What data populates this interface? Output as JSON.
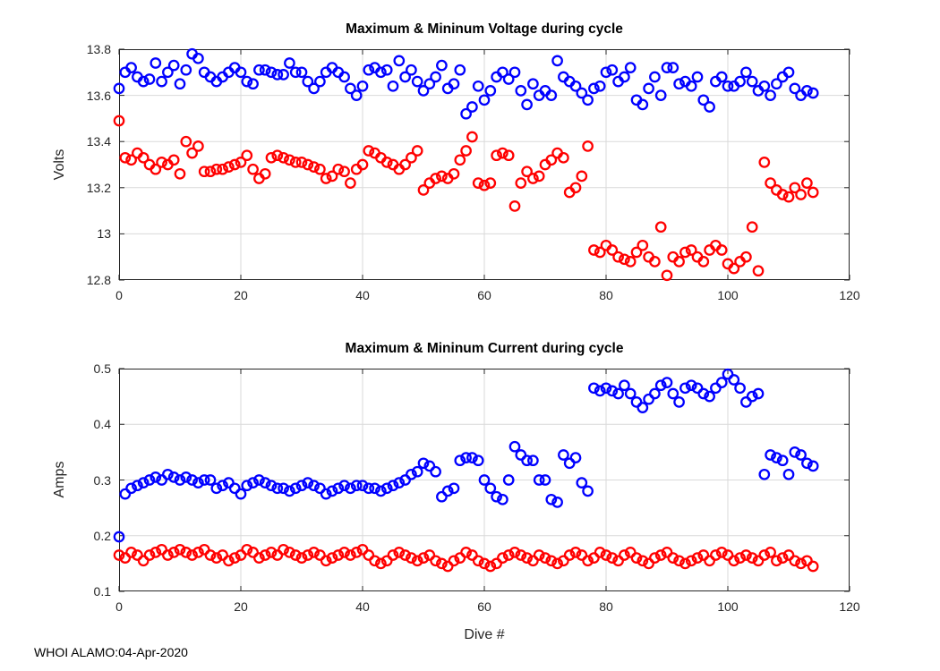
{
  "figure": {
    "footer": "WHOI ALAMO:04-Apr-2020",
    "background": "#ffffff"
  },
  "colors": {
    "max_series": "#0000ff",
    "min_series": "#ff0000",
    "grid": "#d9d9d9",
    "axis": "#262626",
    "text": "#262626"
  },
  "chart_data": [
    {
      "type": "scatter",
      "title": "Maximum & Mininum Voltage during cycle",
      "xlabel": "",
      "ylabel": "Volts",
      "xlim": [
        0,
        120
      ],
      "ylim": [
        12.8,
        13.8
      ],
      "xticks": [
        "0",
        "20",
        "40",
        "60",
        "80",
        "100",
        "120"
      ],
      "yticks": [
        "12.8",
        "13",
        "13.2",
        "13.4",
        "13.6",
        "13.8"
      ],
      "grid": true,
      "marker": "open-circle",
      "x": {
        "start": 0,
        "step": 1,
        "n": 115,
        "label": "Dive #"
      },
      "series": [
        {
          "name": "maximum-voltage",
          "color": "#0000ff",
          "y": [
            13.63,
            13.7,
            13.72,
            13.68,
            13.66,
            13.67,
            13.74,
            13.66,
            13.7,
            13.73,
            13.65,
            13.71,
            13.78,
            13.76,
            13.7,
            13.68,
            13.66,
            13.68,
            13.7,
            13.72,
            13.7,
            13.66,
            13.65,
            13.71,
            13.71,
            13.7,
            13.69,
            13.69,
            13.74,
            13.7,
            13.7,
            13.66,
            13.63,
            13.66,
            13.7,
            13.72,
            13.7,
            13.68,
            13.63,
            13.6,
            13.64,
            13.71,
            13.72,
            13.7,
            13.71,
            13.64,
            13.75,
            13.68,
            13.71,
            13.66,
            13.62,
            13.65,
            13.68,
            13.73,
            13.63,
            13.65,
            13.71,
            13.52,
            13.55,
            13.64,
            13.58,
            13.62,
            13.68,
            13.7,
            13.67,
            13.7,
            13.62,
            13.56,
            13.65,
            13.6,
            13.62,
            13.6,
            13.75,
            13.68,
            13.66,
            13.64,
            13.61,
            13.58,
            13.63,
            13.64,
            13.7,
            13.71,
            13.66,
            13.68,
            13.72,
            13.58,
            13.56,
            13.63,
            13.68,
            13.6,
            13.72,
            13.72,
            13.65,
            13.66,
            13.64,
            13.68,
            13.58,
            13.55,
            13.66,
            13.68,
            13.64,
            13.64,
            13.66,
            13.7,
            13.66,
            13.62,
            13.64,
            13.6,
            13.65,
            13.68,
            13.7,
            13.63,
            13.6,
            13.62,
            13.61
          ]
        },
        {
          "name": "minimum-voltage",
          "color": "#ff0000",
          "y": [
            13.49,
            13.33,
            13.32,
            13.35,
            13.33,
            13.3,
            13.28,
            13.31,
            13.3,
            13.32,
            13.26,
            13.4,
            13.35,
            13.38,
            13.27,
            13.27,
            13.28,
            13.28,
            13.29,
            13.3,
            13.31,
            13.34,
            13.28,
            13.24,
            13.26,
            13.33,
            13.34,
            13.33,
            13.32,
            13.31,
            13.31,
            13.3,
            13.29,
            13.28,
            13.24,
            13.25,
            13.28,
            13.27,
            13.22,
            13.28,
            13.3,
            13.36,
            13.35,
            13.33,
            13.31,
            13.3,
            13.28,
            13.3,
            13.33,
            13.36,
            13.19,
            13.22,
            13.24,
            13.25,
            13.24,
            13.26,
            13.32,
            13.36,
            13.42,
            13.22,
            13.21,
            13.22,
            13.34,
            13.35,
            13.34,
            13.12,
            13.22,
            13.27,
            13.24,
            13.25,
            13.3,
            13.32,
            13.35,
            13.33,
            13.18,
            13.2,
            13.25,
            13.38,
            12.93,
            12.92,
            12.95,
            12.93,
            12.9,
            12.89,
            12.88,
            12.92,
            12.95,
            12.9,
            12.88,
            13.03,
            12.82,
            12.9,
            12.88,
            12.92,
            12.93,
            12.9,
            12.88,
            12.93,
            12.95,
            12.93,
            12.87,
            12.85,
            12.88,
            12.9,
            13.03,
            12.84,
            13.31,
            13.22,
            13.19,
            13.17,
            13.16,
            13.2,
            13.17,
            13.22,
            13.18
          ]
        }
      ]
    },
    {
      "type": "scatter",
      "title": "Maximum & Mininum Current during cycle",
      "xlabel": "Dive #",
      "ylabel": "Amps",
      "xlim": [
        0,
        120
      ],
      "ylim": [
        0.1,
        0.5
      ],
      "xticks": [
        "0",
        "20",
        "40",
        "60",
        "80",
        "100",
        "120"
      ],
      "yticks": [
        "0.1",
        "0.2",
        "0.3",
        "0.4",
        "0.5"
      ],
      "grid": true,
      "marker": "open-circle",
      "x": {
        "start": 0,
        "step": 1,
        "n": 115,
        "label": "Dive #"
      },
      "series": [
        {
          "name": "maximum-current",
          "color": "#0000ff",
          "y": [
            0.198,
            0.275,
            0.285,
            0.29,
            0.295,
            0.3,
            0.305,
            0.3,
            0.31,
            0.305,
            0.3,
            0.305,
            0.3,
            0.295,
            0.3,
            0.3,
            0.285,
            0.29,
            0.295,
            0.285,
            0.275,
            0.29,
            0.295,
            0.3,
            0.295,
            0.29,
            0.285,
            0.285,
            0.28,
            0.285,
            0.29,
            0.295,
            0.29,
            0.285,
            0.275,
            0.28,
            0.285,
            0.29,
            0.285,
            0.29,
            0.29,
            0.285,
            0.285,
            0.28,
            0.285,
            0.29,
            0.295,
            0.3,
            0.31,
            0.315,
            0.33,
            0.325,
            0.315,
            0.27,
            0.28,
            0.285,
            0.335,
            0.34,
            0.34,
            0.335,
            0.3,
            0.285,
            0.27,
            0.265,
            0.3,
            0.36,
            0.345,
            0.335,
            0.335,
            0.3,
            0.3,
            0.265,
            0.26,
            0.345,
            0.33,
            0.34,
            0.295,
            0.28,
            0.465,
            0.46,
            0.465,
            0.46,
            0.455,
            0.47,
            0.455,
            0.44,
            0.43,
            0.445,
            0.455,
            0.47,
            0.475,
            0.455,
            0.44,
            0.465,
            0.47,
            0.465,
            0.455,
            0.45,
            0.465,
            0.475,
            0.49,
            0.48,
            0.465,
            0.44,
            0.45,
            0.455,
            0.31,
            0.345,
            0.34,
            0.335,
            0.31,
            0.35,
            0.345,
            0.33,
            0.325
          ]
        },
        {
          "name": "minimum-current",
          "color": "#ff0000",
          "y": [
            0.165,
            0.16,
            0.17,
            0.165,
            0.155,
            0.165,
            0.17,
            0.175,
            0.165,
            0.17,
            0.175,
            0.17,
            0.165,
            0.17,
            0.175,
            0.165,
            0.16,
            0.165,
            0.155,
            0.16,
            0.165,
            0.175,
            0.17,
            0.16,
            0.165,
            0.17,
            0.165,
            0.175,
            0.17,
            0.165,
            0.16,
            0.165,
            0.17,
            0.165,
            0.155,
            0.16,
            0.165,
            0.17,
            0.165,
            0.17,
            0.175,
            0.165,
            0.155,
            0.15,
            0.155,
            0.165,
            0.17,
            0.165,
            0.16,
            0.155,
            0.16,
            0.165,
            0.155,
            0.15,
            0.145,
            0.155,
            0.16,
            0.17,
            0.165,
            0.155,
            0.15,
            0.145,
            0.15,
            0.16,
            0.165,
            0.17,
            0.165,
            0.16,
            0.155,
            0.165,
            0.16,
            0.155,
            0.15,
            0.155,
            0.165,
            0.17,
            0.165,
            0.155,
            0.16,
            0.17,
            0.165,
            0.16,
            0.155,
            0.165,
            0.17,
            0.16,
            0.155,
            0.15,
            0.16,
            0.165,
            0.17,
            0.16,
            0.155,
            0.15,
            0.155,
            0.16,
            0.165,
            0.155,
            0.165,
            0.17,
            0.165,
            0.155,
            0.16,
            0.165,
            0.16,
            0.155,
            0.165,
            0.17,
            0.155,
            0.16,
            0.165,
            0.155,
            0.15,
            0.155,
            0.145
          ]
        }
      ]
    }
  ]
}
